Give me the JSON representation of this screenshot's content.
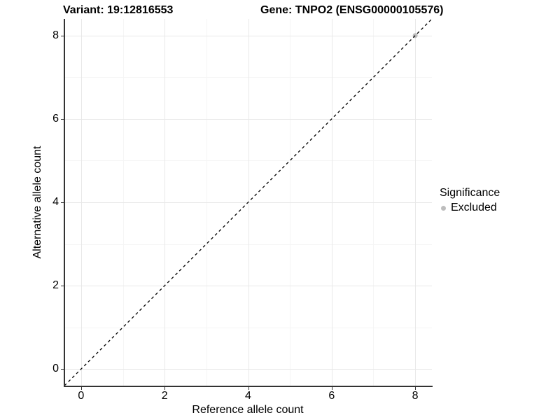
{
  "chart_data": {
    "type": "scatter",
    "titles": {
      "variant": "Variant: 19:12816553",
      "gene": "Gene: TNPO2 (ENSG00000105576)"
    },
    "xlabel": "Reference allele count",
    "ylabel": "Alternative allele count",
    "xlim": [
      -0.4,
      8.4
    ],
    "ylim": [
      -0.4,
      8.4
    ],
    "xticks": [
      0,
      2,
      4,
      6,
      8
    ],
    "yticks": [
      0,
      2,
      4,
      6,
      8
    ],
    "minor_xticks": [
      1,
      3,
      5,
      7
    ],
    "minor_yticks": [
      1,
      3,
      5,
      7
    ],
    "grid": true,
    "points": [
      {
        "x": 8,
        "y": 8,
        "significance": "Excluded"
      }
    ],
    "reference_line": {
      "slope": 1,
      "intercept": 0,
      "style": "dashed",
      "color": "#000000"
    },
    "legend": {
      "title": "Significance",
      "position": "right",
      "items": [
        {
          "label": "Excluded",
          "color": "#bdbdbd"
        }
      ]
    },
    "colors": {
      "point": "#bdbdbd",
      "major_grid": "#e8e8e8",
      "minor_grid": "#f5f5f5",
      "axis": "#333333",
      "background": "#ffffff"
    }
  }
}
